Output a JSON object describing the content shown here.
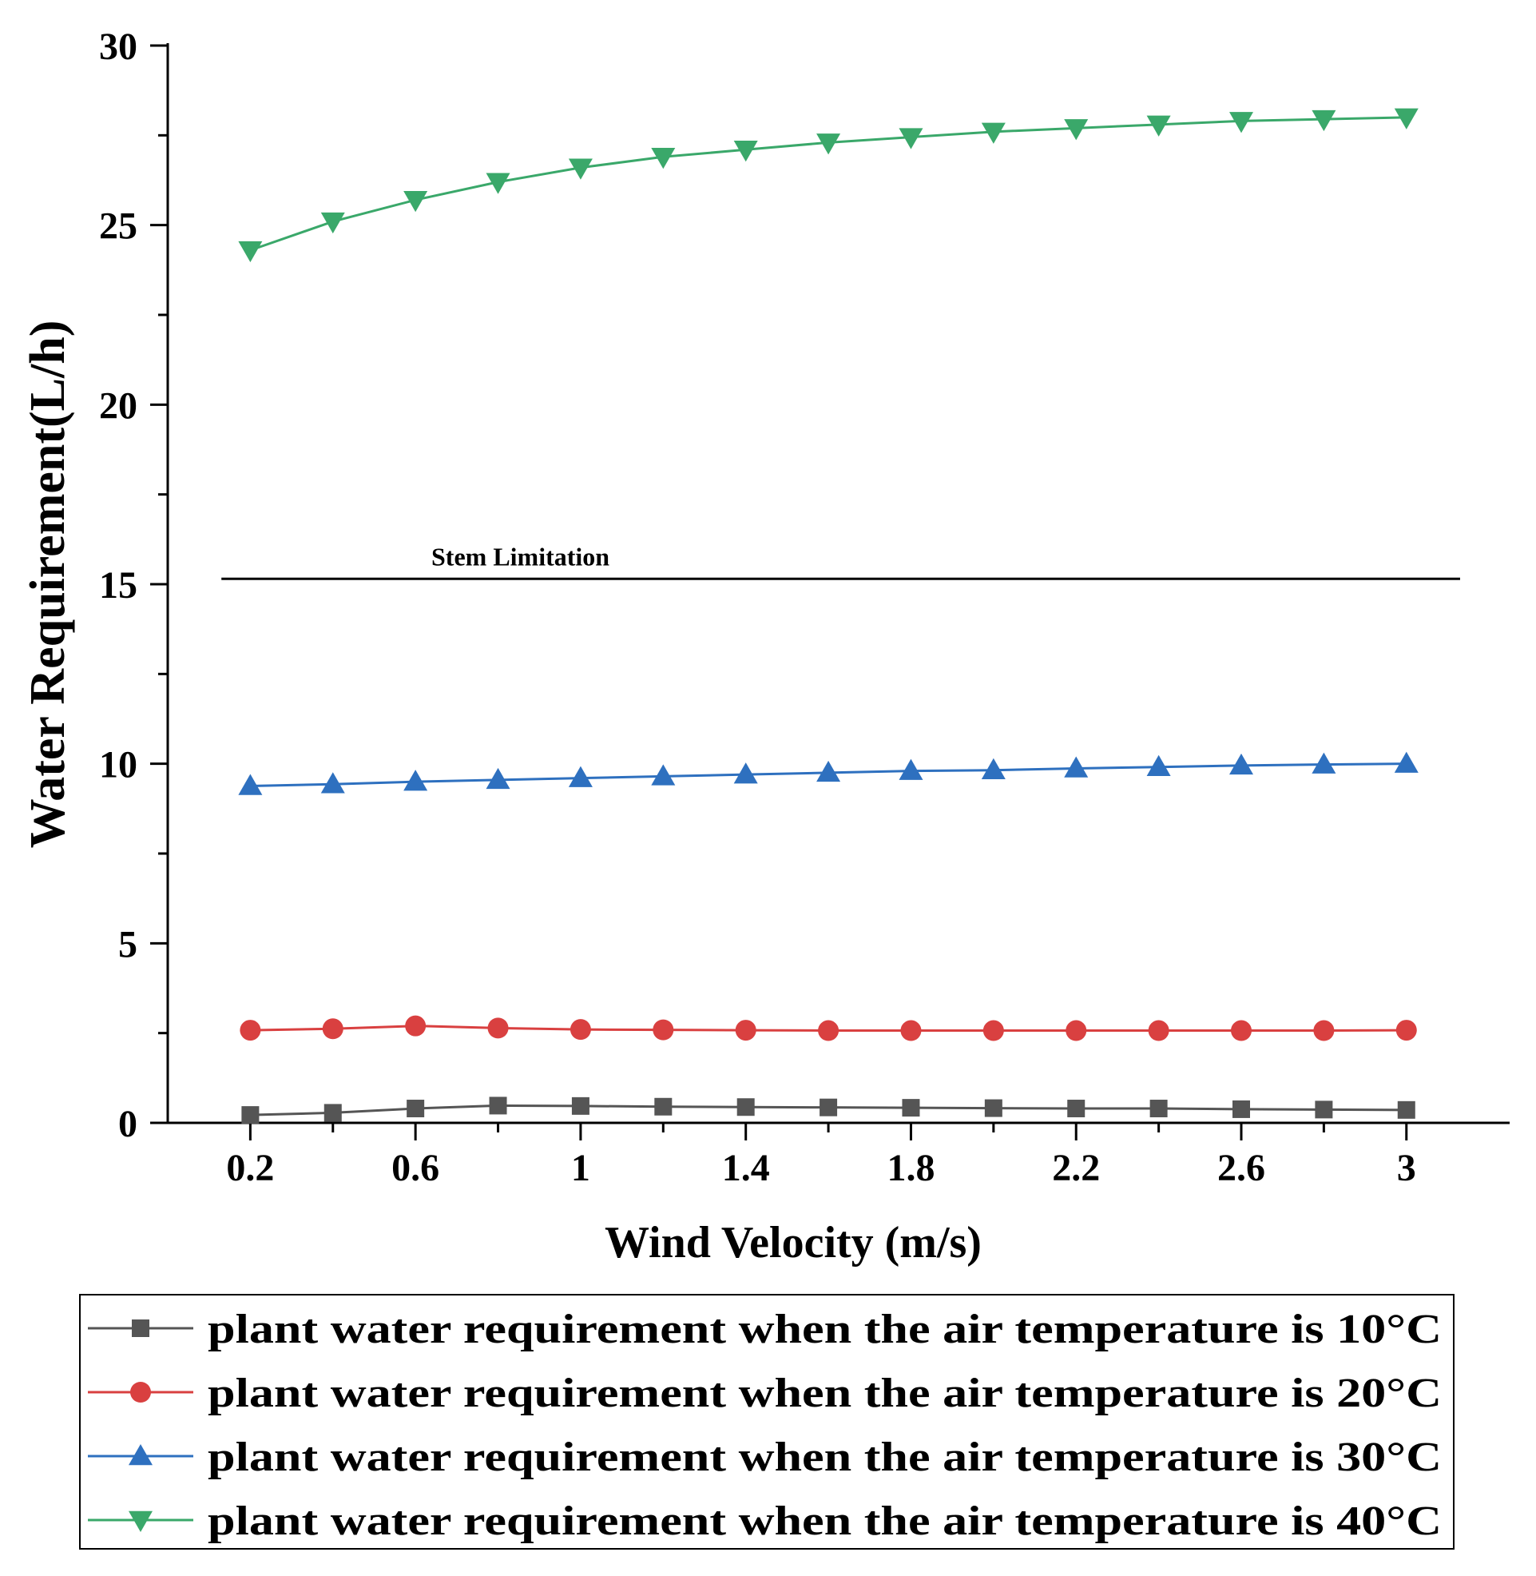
{
  "chart_data": {
    "type": "line",
    "title": "",
    "xlabel": "Wind Velocity (m/s)",
    "ylabel": "Water Requirement(L/h)",
    "xlim": [
      0,
      3.25
    ],
    "ylim": [
      0,
      30
    ],
    "x_ticks": [
      0.2,
      0.6,
      1,
      1.4,
      1.8,
      2.2,
      2.6,
      3
    ],
    "x_tick_labels": [
      "0.2",
      "0.6",
      "1",
      "1.4",
      "1.8",
      "2.2",
      "2.6",
      "3"
    ],
    "y_ticks": [
      0,
      5,
      10,
      15,
      20,
      25,
      30
    ],
    "y_tick_labels": [
      "0",
      "5",
      "10",
      "15",
      "20",
      "25",
      "30"
    ],
    "grid": false,
    "legend_position": "bottom",
    "x": [
      0.2,
      0.4,
      0.6,
      0.8,
      1.0,
      1.2,
      1.4,
      1.6,
      1.8,
      2.0,
      2.2,
      2.4,
      2.6,
      2.8,
      3.0
    ],
    "series": [
      {
        "name": "plant water requirement when the air temperature is 10°C",
        "color": "#555555",
        "marker": "square",
        "values": [
          0.22,
          0.28,
          0.4,
          0.48,
          0.47,
          0.45,
          0.44,
          0.43,
          0.42,
          0.41,
          0.4,
          0.4,
          0.38,
          0.37,
          0.36
        ]
      },
      {
        "name": "plant water requirement when the air temperature is 20°C",
        "color": "#d94040",
        "marker": "circle",
        "values": [
          2.58,
          2.62,
          2.7,
          2.64,
          2.6,
          2.59,
          2.58,
          2.57,
          2.57,
          2.57,
          2.57,
          2.57,
          2.57,
          2.57,
          2.58
        ]
      },
      {
        "name": "plant water requirement when the air temperature is 30°C",
        "color": "#2e70bf",
        "marker": "triangle-up",
        "values": [
          9.38,
          9.43,
          9.5,
          9.55,
          9.6,
          9.65,
          9.7,
          9.75,
          9.8,
          9.82,
          9.87,
          9.91,
          9.95,
          9.98,
          10.0
        ]
      },
      {
        "name": "plant water requirement when the air temperature is 40°C",
        "color": "#3aa86a",
        "marker": "triangle-down",
        "values": [
          24.3,
          25.1,
          25.7,
          26.2,
          26.6,
          26.9,
          27.1,
          27.3,
          27.45,
          27.6,
          27.7,
          27.8,
          27.9,
          27.95,
          28.0
        ]
      }
    ],
    "reference_lines": [
      {
        "label": "Stem Limitation",
        "y": 15.15,
        "x_from": 0.13,
        "x_to": 3.13,
        "color": "#000000"
      }
    ]
  }
}
